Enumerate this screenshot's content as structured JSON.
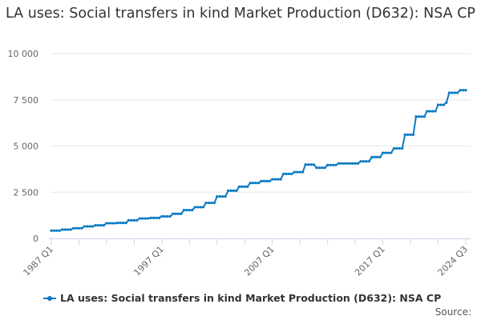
{
  "chart_data": {
    "type": "line",
    "title": "LA uses: Social transfers in kind Market Production (D632): NSA CP",
    "frequency": "quarterly",
    "x_range": [
      "1987 Q1",
      "2024 Q3"
    ],
    "x_tick_labels": [
      "1987 Q1",
      "1997 Q1",
      "2007 Q1",
      "2017 Q1",
      "2024 Q3"
    ],
    "y_tick_labels": [
      "0",
      "2 500",
      "5 000",
      "7 500",
      "10 000"
    ],
    "y_ticks": [
      0,
      2500,
      5000,
      7500,
      10000
    ],
    "ylim": [
      0,
      10000
    ],
    "grid": true,
    "legend_position": "bottom",
    "series": [
      {
        "name": "LA uses: Social transfers in kind Market Production (D632): NSA CP",
        "color": "#0a7ac4",
        "values": [
          420,
          420,
          420,
          420,
          475,
          475,
          475,
          475,
          550,
          550,
          550,
          550,
          650,
          650,
          650,
          650,
          710,
          710,
          710,
          710,
          820,
          820,
          820,
          820,
          840,
          840,
          840,
          840,
          980,
          980,
          980,
          980,
          1080,
          1080,
          1080,
          1080,
          1110,
          1110,
          1110,
          1110,
          1190,
          1190,
          1190,
          1190,
          1330,
          1330,
          1330,
          1330,
          1530,
          1530,
          1530,
          1530,
          1690,
          1690,
          1690,
          1690,
          1920,
          1920,
          1920,
          1920,
          2270,
          2270,
          2270,
          2270,
          2580,
          2580,
          2580,
          2580,
          2800,
          2800,
          2800,
          2800,
          3000,
          3000,
          3000,
          3000,
          3100,
          3100,
          3100,
          3100,
          3200,
          3200,
          3200,
          3200,
          3490,
          3490,
          3490,
          3490,
          3590,
          3590,
          3590,
          3590,
          3995,
          3995,
          3995,
          3995,
          3820,
          3820,
          3820,
          3820,
          3970,
          3970,
          3970,
          3970,
          4055,
          4055,
          4055,
          4055,
          4055,
          4055,
          4055,
          4055,
          4170,
          4170,
          4170,
          4170,
          4400,
          4400,
          4400,
          4400,
          4630,
          4630,
          4630,
          4630,
          4870,
          4870,
          4870,
          4870,
          5610,
          5610,
          5610,
          5610,
          6590,
          6590,
          6590,
          6590,
          6880,
          6880,
          6880,
          6880,
          7230,
          7230,
          7230,
          7350,
          7880,
          7880,
          7880,
          7880,
          8020,
          8020,
          8020
        ]
      }
    ]
  },
  "footer": {
    "source": "Source:"
  }
}
